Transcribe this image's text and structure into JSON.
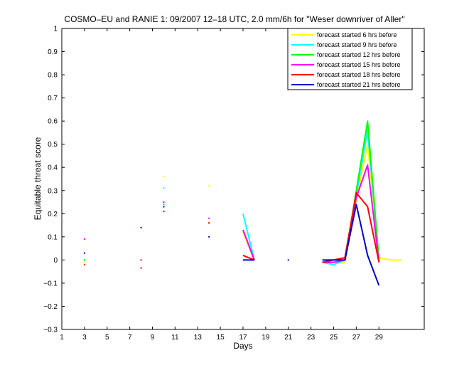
{
  "chart_data": {
    "type": "line",
    "title": "COSMO–EU and RANIE 1: 09/2007 12–18 UTC, 2.0 mm/6h for \"Weser downriver of Aller\"",
    "xlabel": "Days",
    "ylabel": "Equitable threat score",
    "xlim": [
      1,
      33
    ],
    "ylim": [
      -0.3,
      1
    ],
    "xticks": [
      1,
      3,
      5,
      7,
      9,
      11,
      13,
      15,
      17,
      19,
      21,
      23,
      25,
      27,
      29
    ],
    "yticks": [
      -0.3,
      -0.2,
      -0.1,
      0,
      0.1,
      0.2,
      0.3,
      0.4,
      0.5,
      0.6,
      0.7,
      0.8,
      0.9,
      1
    ],
    "ytick_labels": [
      "−0.3",
      "−0.2",
      "−0.1",
      "0",
      "0.1",
      "0.2",
      "0.3",
      "0.4",
      "0.5",
      "0.6",
      "0.7",
      "0.8",
      "0.9",
      "1"
    ],
    "grid": false,
    "legend_position": "top-right",
    "series": [
      {
        "name": "forecast started 6 hrs before",
        "color": "#ffff00",
        "points": [
          [
            3,
            -0.01
          ],
          [
            8,
            0.0
          ],
          [
            10,
            0.36
          ],
          [
            14,
            0.32
          ],
          [
            17,
            0.12
          ],
          [
            18,
            0.0
          ],
          [
            24,
            -0.01
          ],
          [
            25,
            -0.01
          ],
          [
            26,
            -0.01
          ],
          [
            27,
            0.26
          ],
          [
            28,
            0.5
          ],
          [
            29,
            0.01
          ],
          [
            30,
            0.0
          ],
          [
            31,
            0.0
          ]
        ]
      },
      {
        "name": "forecast started 9 hrs before",
        "color": "#00ffff",
        "points": [
          [
            3,
            0.0
          ],
          [
            8,
            0.0
          ],
          [
            10,
            0.31
          ],
          [
            14,
            0.16
          ],
          [
            17,
            0.2
          ],
          [
            18,
            0.0
          ],
          [
            24,
            -0.01
          ],
          [
            25,
            -0.02
          ],
          [
            26,
            0.0
          ],
          [
            27,
            0.28
          ],
          [
            28,
            0.56
          ],
          [
            29,
            0.0
          ]
        ]
      },
      {
        "name": "forecast started 12 hrs before",
        "color": "#00ff00",
        "points": [
          [
            3,
            0.0
          ],
          [
            8,
            0.0
          ],
          [
            10,
            0.24
          ],
          [
            14,
            0.16
          ],
          [
            17,
            0.13
          ],
          [
            18,
            0.0
          ],
          [
            24,
            -0.01
          ],
          [
            25,
            -0.01
          ],
          [
            26,
            0.0
          ],
          [
            27,
            0.3
          ],
          [
            28,
            0.6
          ],
          [
            29,
            0.0
          ]
        ]
      },
      {
        "name": "forecast started 15 hrs before",
        "color": "#ff00ff",
        "points": [
          [
            3,
            0.09
          ],
          [
            8,
            0.0
          ],
          [
            10,
            0.25
          ],
          [
            14,
            0.18
          ],
          [
            17,
            0.13
          ],
          [
            18,
            0.0
          ],
          [
            24,
            -0.01
          ],
          [
            25,
            -0.01
          ],
          [
            26,
            0.0
          ],
          [
            27,
            0.27
          ],
          [
            28,
            0.41
          ],
          [
            29,
            -0.01
          ]
        ]
      },
      {
        "name": "forecast started 18 hrs before",
        "color": "#ff0000",
        "points": [
          [
            3,
            -0.02
          ],
          [
            8,
            -0.035
          ],
          [
            10,
            0.21
          ],
          [
            14,
            0.16
          ],
          [
            17,
            0.02
          ],
          [
            18,
            0.0
          ],
          [
            24,
            -0.01
          ],
          [
            25,
            0.0
          ],
          [
            26,
            0.01
          ],
          [
            27,
            0.29
          ],
          [
            28,
            0.23
          ],
          [
            29,
            -0.01
          ]
        ]
      },
      {
        "name": "forecast started 21 hrs before",
        "color": "#0000cc",
        "points": [
          [
            3,
            0.03
          ],
          [
            8,
            0.14
          ],
          [
            10,
            0.23
          ],
          [
            14,
            0.1
          ],
          [
            17,
            0.0
          ],
          [
            18,
            0.0
          ],
          [
            21,
            0.0
          ],
          [
            24,
            0.0
          ],
          [
            25,
            0.0
          ],
          [
            26,
            0.0
          ],
          [
            27,
            0.24
          ],
          [
            28,
            0.02
          ],
          [
            29,
            -0.11
          ]
        ]
      }
    ]
  }
}
